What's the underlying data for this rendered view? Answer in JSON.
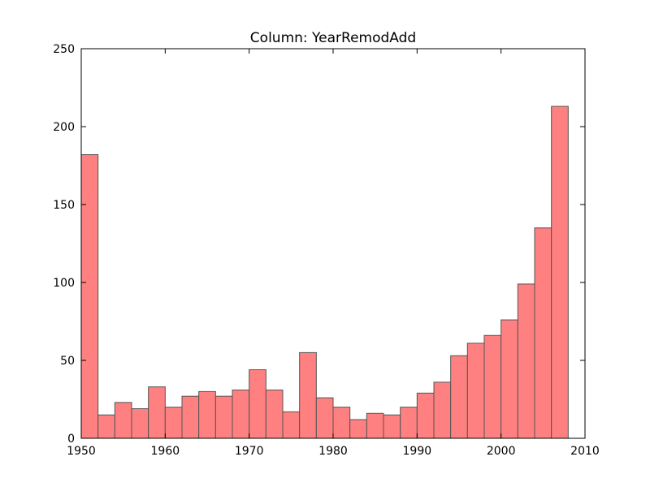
{
  "chart_data": {
    "type": "bar",
    "title": "Column: YearRemodAdd",
    "xlabel": "",
    "ylabel": "",
    "xlim": [
      1950,
      2010
    ],
    "ylim": [
      0,
      250
    ],
    "grid": false,
    "bar_color": "#ff8080",
    "edge_color": "#555555",
    "xticks": [
      "1950",
      "1960",
      "1970",
      "1980",
      "1990",
      "2000",
      "2010"
    ],
    "yticks": [
      "0",
      "50",
      "100",
      "150",
      "200",
      "250"
    ],
    "bin_start": 1950,
    "bin_end": 2010,
    "values": [
      182,
      15,
      23,
      19,
      33,
      20,
      27,
      30,
      27,
      31,
      44,
      31,
      17,
      55,
      26,
      20,
      12,
      16,
      15,
      20,
      29,
      36,
      53,
      61,
      66,
      76,
      99,
      135,
      213
    ]
  }
}
